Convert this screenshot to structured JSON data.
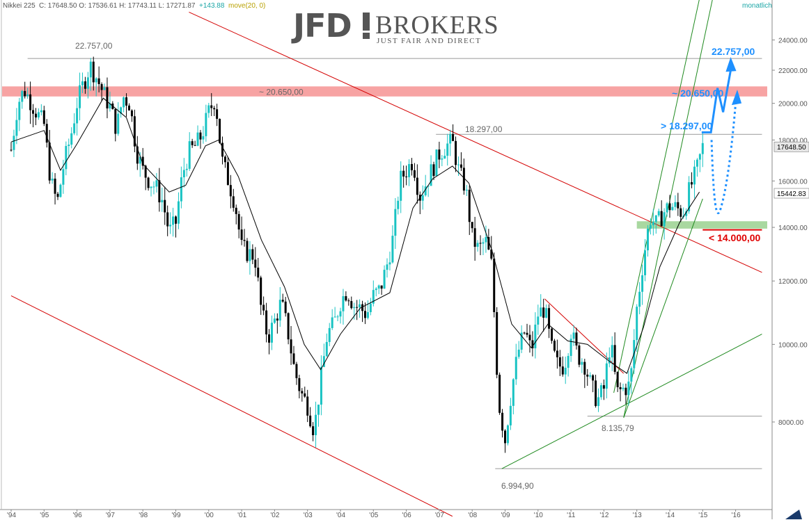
{
  "header": {
    "symbol": "Nikkei 225",
    "ohlc": "C: 17648.50  O: 17536.61  H: 17743.11  L: 17271.87",
    "change": "+143.88",
    "indicator": "move(20, 0)",
    "timeframe": "monatlich"
  },
  "logo": {
    "brand_left": "JFD",
    "brand_right": "BROKERS",
    "tagline": "JUST FAIR AND DIRECT"
  },
  "colors": {
    "bull": "#19c3c3",
    "bear": "#000000",
    "channel": "#d40000",
    "trend": "#1f8a1f",
    "resistance_zone": "#f7a3a3",
    "support_zone": "#a9d8a0",
    "projection": "#1e90ff",
    "target_down": "#e00000"
  },
  "chart_data": {
    "type": "candlestick",
    "title": "Nikkei 225",
    "timeframe": "monatlich",
    "x": {
      "type": "time",
      "ticks": [
        "'94",
        "'95",
        "'96",
        "'97",
        "'98",
        "'99",
        "'00",
        "'01",
        "'02",
        "'03",
        "'04",
        "'05",
        "'06",
        "'07",
        "'08",
        "'09",
        "'10",
        "'11",
        "'12",
        "'13",
        "'14",
        "'15",
        "'16"
      ]
    },
    "y": {
      "scale": "log",
      "range": [
        6500,
        26000
      ],
      "ticks": [
        "8000.00",
        "10000.00",
        "12000.00",
        "14000.00",
        "16000.00",
        "18000.00",
        "20000.00",
        "22000.00",
        "24000.00"
      ]
    },
    "last": {
      "close": 17648.5,
      "open": 17536.61,
      "high": 17743.11,
      "low": 17271.87,
      "change": 143.88
    },
    "price_tags": [
      {
        "label": "17648.50",
        "value": 17648.5,
        "style": "last"
      },
      {
        "label": "15442.83",
        "value": 15442.83,
        "style": "ma"
      }
    ],
    "moving_average": {
      "name": "move(20, 0)",
      "period": 20,
      "points": [
        [
          1994.0,
          17900
        ],
        [
          1995.0,
          18500
        ],
        [
          1995.5,
          16500
        ],
        [
          1996.0,
          17800
        ],
        [
          1996.8,
          20300
        ],
        [
          1997.5,
          19200
        ],
        [
          1998.0,
          16800
        ],
        [
          1998.8,
          15500
        ],
        [
          1999.3,
          15800
        ],
        [
          1999.9,
          17700
        ],
        [
          2000.3,
          18000
        ],
        [
          2000.9,
          16200
        ],
        [
          2001.6,
          13500
        ],
        [
          2002.3,
          11800
        ],
        [
          2002.9,
          10000
        ],
        [
          2003.4,
          9300
        ],
        [
          2004.0,
          10300
        ],
        [
          2004.6,
          11100
        ],
        [
          2005.5,
          11600
        ],
        [
          2006.2,
          14800
        ],
        [
          2006.8,
          16100
        ],
        [
          2007.4,
          16700
        ],
        [
          2007.9,
          15900
        ],
        [
          2008.6,
          13100
        ],
        [
          2009.2,
          10600
        ],
        [
          2009.8,
          9900
        ],
        [
          2010.3,
          10600
        ],
        [
          2010.9,
          10100
        ],
        [
          2011.5,
          10000
        ],
        [
          2012.2,
          9500
        ],
        [
          2012.7,
          9200
        ],
        [
          2013.2,
          10500
        ],
        [
          2013.7,
          12500
        ],
        [
          2014.3,
          14200
        ],
        [
          2014.9,
          15500
        ]
      ]
    },
    "price_path": [
      [
        1994.0,
        17500
      ],
      [
        1994.2,
        20000
      ],
      [
        1994.4,
        20800
      ],
      [
        1994.6,
        20100
      ],
      [
        1994.8,
        19400
      ],
      [
        1995.0,
        18800
      ],
      [
        1995.2,
        16000
      ],
      [
        1995.4,
        15000
      ],
      [
        1995.6,
        16800
      ],
      [
        1995.8,
        18100
      ],
      [
        1996.0,
        20000
      ],
      [
        1996.2,
        21200
      ],
      [
        1996.4,
        22300
      ],
      [
        1996.6,
        21500
      ],
      [
        1996.8,
        20600
      ],
      [
        1997.0,
        19800
      ],
      [
        1997.2,
        18600
      ],
      [
        1997.4,
        20400
      ],
      [
        1997.6,
        20000
      ],
      [
        1997.8,
        17500
      ],
      [
        1998.0,
        16500
      ],
      [
        1998.2,
        16000
      ],
      [
        1998.4,
        15700
      ],
      [
        1998.6,
        15100
      ],
      [
        1998.8,
        13800
      ],
      [
        1999.0,
        14200
      ],
      [
        1999.2,
        16300
      ],
      [
        1999.4,
        17400
      ],
      [
        1999.6,
        17700
      ],
      [
        1999.8,
        18300
      ],
      [
        2000.0,
        19500
      ],
      [
        2000.2,
        20300
      ],
      [
        2000.4,
        17000
      ],
      [
        2000.6,
        16000
      ],
      [
        2000.8,
        15000
      ],
      [
        2001.0,
        13200
      ],
      [
        2001.2,
        13000
      ],
      [
        2001.4,
        12900
      ],
      [
        2001.6,
        11000
      ],
      [
        2001.8,
        10200
      ],
      [
        2002.0,
        10700
      ],
      [
        2002.2,
        11300
      ],
      [
        2002.4,
        10400
      ],
      [
        2002.6,
        9300
      ],
      [
        2002.8,
        8700
      ],
      [
        2003.0,
        8400
      ],
      [
        2003.2,
        7800
      ],
      [
        2003.4,
        9000
      ],
      [
        2003.6,
        10300
      ],
      [
        2003.8,
        10600
      ],
      [
        2004.0,
        11300
      ],
      [
        2004.2,
        11700
      ],
      [
        2004.4,
        11200
      ],
      [
        2004.6,
        11100
      ],
      [
        2004.8,
        10900
      ],
      [
        2005.0,
        11500
      ],
      [
        2005.2,
        11700
      ],
      [
        2005.4,
        12500
      ],
      [
        2005.6,
        13600
      ],
      [
        2005.8,
        16000
      ],
      [
        2006.0,
        16500
      ],
      [
        2006.2,
        17000
      ],
      [
        2006.4,
        15300
      ],
      [
        2006.6,
        15900
      ],
      [
        2006.8,
        16600
      ],
      [
        2007.0,
        17300
      ],
      [
        2007.2,
        17700
      ],
      [
        2007.4,
        17900
      ],
      [
        2007.6,
        16400
      ],
      [
        2007.8,
        15700
      ],
      [
        2008.0,
        13600
      ],
      [
        2008.2,
        13100
      ],
      [
        2008.4,
        13500
      ],
      [
        2008.6,
        12500
      ],
      [
        2008.8,
        8500
      ],
      [
        2009.0,
        7600
      ],
      [
        2009.2,
        8800
      ],
      [
        2009.4,
        9800
      ],
      [
        2009.6,
        10400
      ],
      [
        2009.8,
        9800
      ],
      [
        2010.0,
        10900
      ],
      [
        2010.2,
        11100
      ],
      [
        2010.4,
        9900
      ],
      [
        2010.6,
        9400
      ],
      [
        2010.8,
        9400
      ],
      [
        2011.0,
        10400
      ],
      [
        2011.2,
        9700
      ],
      [
        2011.4,
        9500
      ],
      [
        2011.6,
        8900
      ],
      [
        2011.8,
        8500
      ],
      [
        2012.0,
        8800
      ],
      [
        2012.2,
        10100
      ],
      [
        2012.4,
        8700
      ],
      [
        2012.6,
        8800
      ],
      [
        2012.8,
        8900
      ],
      [
        2013.0,
        11100
      ],
      [
        2013.2,
        12800
      ],
      [
        2013.4,
        14400
      ],
      [
        2013.6,
        14100
      ],
      [
        2013.8,
        14600
      ],
      [
        2014.0,
        14900
      ],
      [
        2014.2,
        14800
      ],
      [
        2014.4,
        14600
      ],
      [
        2014.6,
        15600
      ],
      [
        2014.8,
        16400
      ],
      [
        2014.9,
        17000
      ],
      [
        2015.0,
        17650
      ]
    ],
    "horizontal_levels": [
      {
        "label": "22.757,00",
        "value": 22757
      },
      {
        "label": "18.297,00",
        "value": 18297
      },
      {
        "label": "8.135,79",
        "value": 8135.79
      },
      {
        "label": "6.994,90",
        "value": 6994.9
      }
    ],
    "zones": [
      {
        "label": "~ 20.650,00",
        "from": 20400,
        "to": 21000,
        "kind": "resistance"
      },
      {
        "label": "",
        "from": 13950,
        "to": 14250,
        "kind": "support"
      }
    ],
    "trendlines": [
      {
        "kind": "channel",
        "from": [
          1994.0,
          11500
        ],
        "to": [
          2007.4,
          6100
        ]
      },
      {
        "kind": "channel",
        "from": [
          1999.4,
          26000
        ],
        "to": [
          2016.8,
          12300
        ]
      },
      {
        "kind": "channel",
        "from": [
          2010.2,
          11400
        ],
        "to": [
          2012.6,
          9200
        ]
      },
      {
        "kind": "trend",
        "from": [
          2008.9,
          6994.9
        ],
        "to": [
          2016.8,
          10300
        ]
      },
      {
        "kind": "trend",
        "from": [
          2012.3,
          8700
        ],
        "to": [
          2014.9,
          27000
        ]
      },
      {
        "kind": "trend",
        "from": [
          2012.6,
          8100
        ],
        "to": [
          2015.3,
          27000
        ]
      },
      {
        "kind": "trend",
        "from": [
          2012.6,
          8100
        ],
        "to": [
          2015.0,
          15200
        ]
      }
    ],
    "projection_labels": [
      {
        "label": "22.757,00",
        "value": 22757,
        "color": "#1e90ff"
      },
      {
        "label": "~ 20.650,00",
        "value": 20650,
        "color": "#1e90ff"
      },
      {
        "label": "> 18.297,00",
        "value": 18297,
        "color": "#1e90ff"
      },
      {
        "label": "< 14.000,00",
        "value": 14000,
        "color": "#e00000"
      }
    ]
  }
}
